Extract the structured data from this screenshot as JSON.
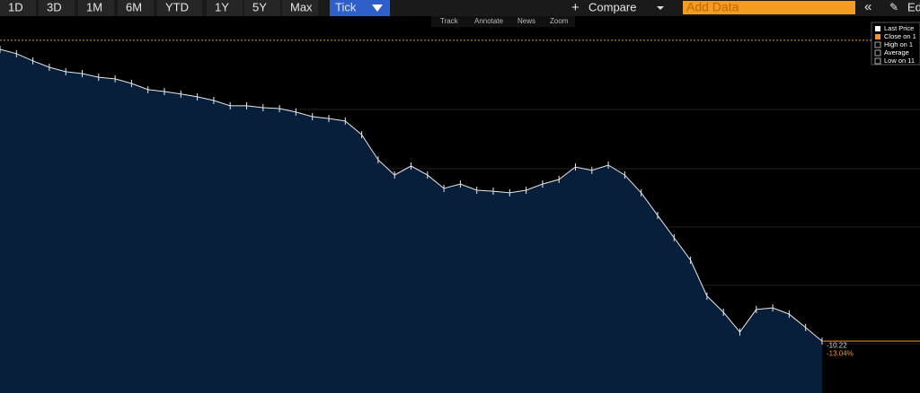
{
  "toolbar": {
    "ranges": [
      "1D",
      "3D",
      "1M",
      "6M",
      "YTD",
      "1Y",
      "5Y",
      "Max"
    ],
    "mode": "Tick",
    "compare": "Compare",
    "add_data": "Add Data",
    "edit": "Ed"
  },
  "tools": [
    "Track",
    "Annotate",
    "News",
    "Zoom"
  ],
  "legend": [
    "Last Price",
    "Close on 1",
    "High on 1",
    "Average",
    "Low on 11"
  ],
  "chart_data": {
    "type": "line",
    "color": "#e8e8e8",
    "fill": "#071f3a",
    "values": [
      -0.39,
      -0.58,
      -0.89,
      -1.17,
      -1.36,
      -1.44,
      -1.6,
      -1.67,
      -1.87,
      -2.14,
      -2.22,
      -2.33,
      -2.45,
      -2.61,
      -2.84,
      -2.84,
      -2.92,
      -2.96,
      -3.11,
      -3.31,
      -3.39,
      -3.5,
      -4.09,
      -5.18,
      -5.84,
      -5.45,
      -5.84,
      -6.42,
      -6.23,
      -6.5,
      -6.54,
      -6.61,
      -6.5,
      -6.23,
      -6.03,
      -5.49,
      -5.64,
      -5.41,
      -5.84,
      -6.61,
      -7.59,
      -8.56,
      -9.53,
      -11.09,
      -11.79,
      -12.65,
      -11.67,
      -11.6,
      -11.87,
      -12.45,
      -13.04
    ],
    "ylim": [
      -15.29,
      0.97
    ],
    "close_line": 0,
    "close_color": "#f0962a",
    "last_price": -10.22,
    "last_change": "-13.04%"
  }
}
